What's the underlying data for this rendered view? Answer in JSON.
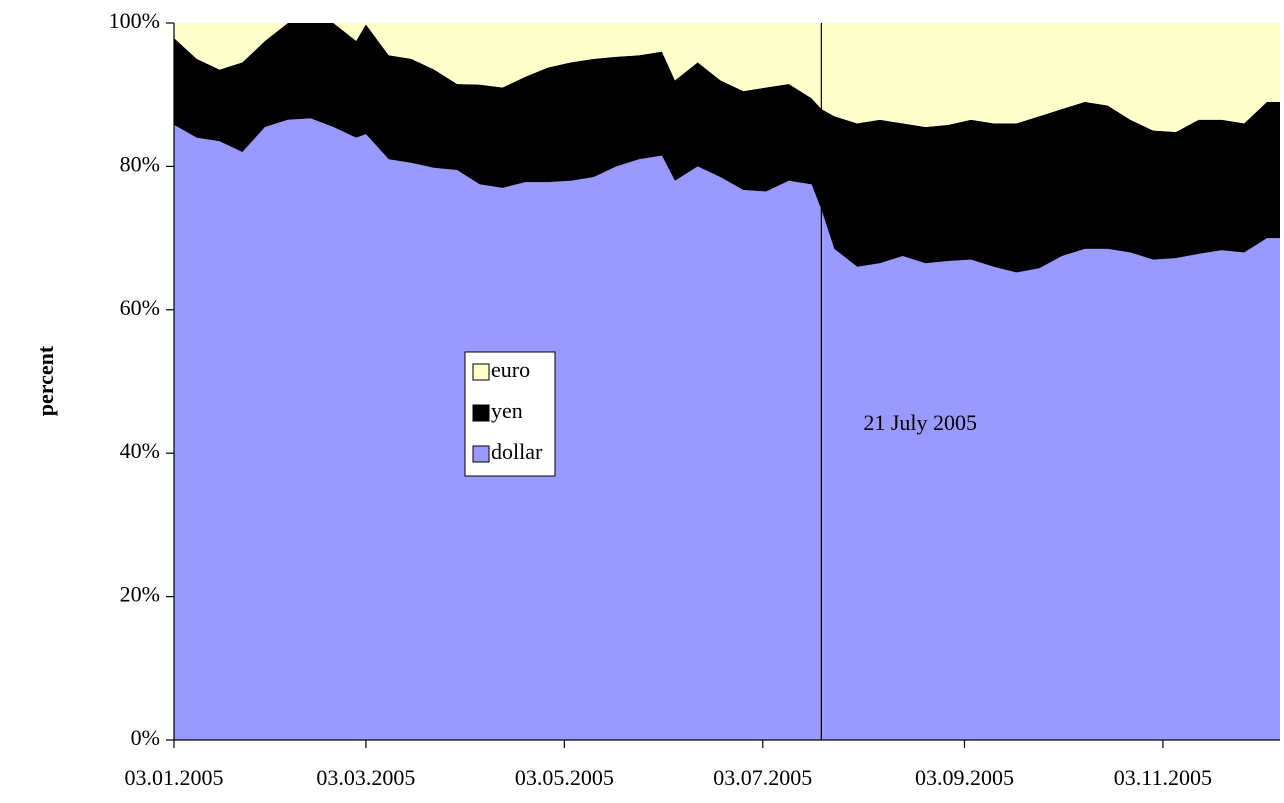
{
  "chart_data": {
    "type": "stacked_area",
    "y_label": "percent",
    "x": [
      "03.01.2005",
      "10.01.2005",
      "17.01.2005",
      "24.01.2005",
      "31.01.2005",
      "07.02.2005",
      "14.02.2005",
      "21.02.2005",
      "28.02.2005",
      "03.03.2005",
      "10.03.2005",
      "17.03.2005",
      "24.03.2005",
      "31.03.2005",
      "07.04.2005",
      "14.04.2005",
      "21.04.2005",
      "28.04.2005",
      "05.05.2005",
      "12.05.2005",
      "19.05.2005",
      "26.05.2005",
      "02.06.2005",
      "06.06.2005",
      "13.06.2005",
      "20.06.2005",
      "27.06.2005",
      "04.07.2005",
      "11.07.2005",
      "18.07.2005",
      "21.07.2005",
      "25.07.2005",
      "01.08.2005",
      "08.08.2005",
      "15.08.2005",
      "22.08.2005",
      "29.08.2005",
      "05.09.2005",
      "12.09.2005",
      "19.09.2005",
      "26.09.2005",
      "03.10.2005",
      "10.10.2005",
      "17.10.2005",
      "24.10.2005",
      "31.10.2005",
      "07.11.2005",
      "14.11.2005",
      "21.11.2005",
      "28.11.2005",
      "05.12.2005",
      "09.12.2005"
    ],
    "series": [
      {
        "name": "dollar",
        "color": "#9999ff",
        "values": [
          85.8,
          84.0,
          83.5,
          82.0,
          85.5,
          86.5,
          86.7,
          85.5,
          84.0,
          84.5,
          81.0,
          80.5,
          79.8,
          79.5,
          77.5,
          77.0,
          77.8,
          77.8,
          78.0,
          78.5,
          80.0,
          81.0,
          81.5,
          78.0,
          80.0,
          78.5,
          76.7,
          76.5,
          78.0,
          77.5,
          74.0,
          68.5,
          66.0,
          66.5,
          67.5,
          66.5,
          66.8,
          67.0,
          66.0,
          65.2,
          65.8,
          67.5,
          68.5,
          68.5,
          68.0,
          67.0,
          67.2,
          67.8,
          68.3,
          68.0,
          70.0,
          70.0
        ]
      },
      {
        "name": "yen",
        "color": "#000000",
        "values": [
          12.1,
          11.0,
          10.0,
          12.5,
          12.0,
          13.5,
          13.3,
          14.5,
          13.5,
          15.3,
          14.5,
          14.5,
          13.7,
          12.0,
          13.9,
          14.0,
          14.7,
          16.0,
          16.5,
          16.5,
          15.3,
          14.5,
          14.5,
          14.0,
          14.5,
          13.5,
          13.8,
          14.5,
          13.5,
          12.0,
          14.0,
          18.5,
          20.0,
          20.0,
          18.5,
          19.0,
          19.0,
          19.5,
          20.0,
          20.8,
          21.2,
          20.5,
          20.5,
          20.0,
          18.5,
          18.0,
          17.6,
          18.7,
          18.2,
          18.0,
          19.0,
          19.0
        ]
      },
      {
        "name": "euro",
        "color": "#ffffcc",
        "values": [
          2.1,
          5.0,
          6.5,
          5.5,
          2.5,
          0,
          0,
          0,
          2.5,
          0.2,
          4.5,
          5.0,
          6.5,
          8.5,
          8.6,
          9.0,
          7.5,
          6.2,
          5.5,
          5.0,
          4.7,
          4.5,
          4.0,
          8.0,
          5.5,
          8.0,
          9.5,
          9.0,
          8.5,
          10.5,
          12.0,
          13.0,
          14.0,
          13.5,
          14.0,
          14.5,
          14.2,
          13.5,
          14.0,
          14.0,
          13.0,
          12.0,
          11.0,
          11.5,
          13.5,
          15.0,
          15.2,
          13.5,
          13.5,
          14.0,
          11.0,
          11.0
        ]
      }
    ],
    "xlim": [
      "03.01.2005",
      "09.12.2005"
    ],
    "xticks": [
      "03.01.2005",
      "03.03.2005",
      "03.05.2005",
      "03.07.2005",
      "03.09.2005",
      "03.11.2005"
    ],
    "ylim": [
      0,
      100
    ],
    "yticks": [
      {
        "value": 0,
        "label": "0%"
      },
      {
        "value": 20,
        "label": "20%"
      },
      {
        "value": 40,
        "label": "40%"
      },
      {
        "value": 60,
        "label": "60%"
      },
      {
        "value": 80,
        "label": "80%"
      },
      {
        "value": 100,
        "label": "100%"
      }
    ],
    "legend_order": [
      "euro",
      "yen",
      "dollar"
    ],
    "annotation": {
      "text": "21 July 2005",
      "x": "21.07.2005"
    }
  }
}
